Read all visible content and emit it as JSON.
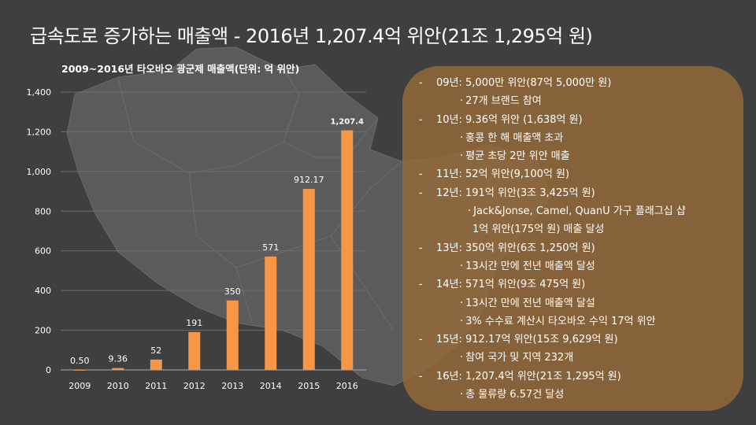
{
  "slide": {
    "title": "급속도로 증가하는 매출액 - 2016년 1,207.4억 위안(21조 1,295억 원)"
  },
  "chart_data": {
    "type": "bar",
    "title": "2009~2016년 타오바오 광군제 매출액(단위: 억 위안)",
    "categories": [
      "2009",
      "2010",
      "2011",
      "2012",
      "2013",
      "2014",
      "2015",
      "2016"
    ],
    "values": [
      0.5,
      9.36,
      52,
      191,
      350,
      571,
      912.17,
      1207.4
    ],
    "value_labels": [
      "0.50",
      "9.36",
      "52",
      "191",
      "350",
      "571",
      "912.17",
      "1,207.4"
    ],
    "ylim": [
      0,
      1400
    ],
    "y_ticks": [
      0,
      200,
      400,
      600,
      800,
      1000,
      1200,
      1400
    ],
    "y_tick_labels": [
      "0",
      "200",
      "400",
      "600",
      "800",
      "1,000",
      "1,200",
      "1,400"
    ],
    "grid": true,
    "legend": "none",
    "xlabel": "",
    "ylabel": "",
    "bar_color": "#f79646"
  },
  "info": {
    "lines": [
      {
        "kind": "year",
        "text": "09년: 5,000만 위안(87억 5,000만 원)"
      },
      {
        "kind": "sub",
        "text": "27개 브랜드 참여"
      },
      {
        "kind": "year",
        "text": "10년:  9.36억 위안 (1,638억 원)"
      },
      {
        "kind": "sub",
        "text": "홍콩 한 해 매출액  초과"
      },
      {
        "kind": "sub",
        "text": "평균 초당 2만 위안 매출"
      },
      {
        "kind": "year",
        "text": "11년: 52억 위안(9,100억 원)"
      },
      {
        "kind": "year",
        "text": "12년: 191억 위안(3조 3,425억 원)"
      },
      {
        "kind": "sub-deep",
        "text": "Jack&Jonse, Camel, QuanU 가구 플래그십 샵"
      },
      {
        "kind": "cont",
        "text": "1억 위안(175억 원) 매출 달성"
      },
      {
        "kind": "year",
        "text": "13년: 350억 위안(6조 1,250억 원)"
      },
      {
        "kind": "sub",
        "text": "13시간 만에 전년 매출액 달성"
      },
      {
        "kind": "year",
        "text": "14년: 571억 위안(9조 475억 원)"
      },
      {
        "kind": "sub",
        "text": "13시간 만에 전년 매출액 달설"
      },
      {
        "kind": "sub",
        "text": "3% 수수료 계산시 타오바오 수익 17억 위안"
      },
      {
        "kind": "year",
        "text": "15년: 912.17억 위안(15조 9,629억 원)"
      },
      {
        "kind": "sub",
        "text": "참여 국가 및 지역 232개"
      },
      {
        "kind": "year",
        "text": "16년: 1,207.4억 위안(21조 1,295억 원)"
      },
      {
        "kind": "sub",
        "text": "총 물류량 6.57건 달성"
      }
    ],
    "dash": "-",
    "dot": "·"
  }
}
